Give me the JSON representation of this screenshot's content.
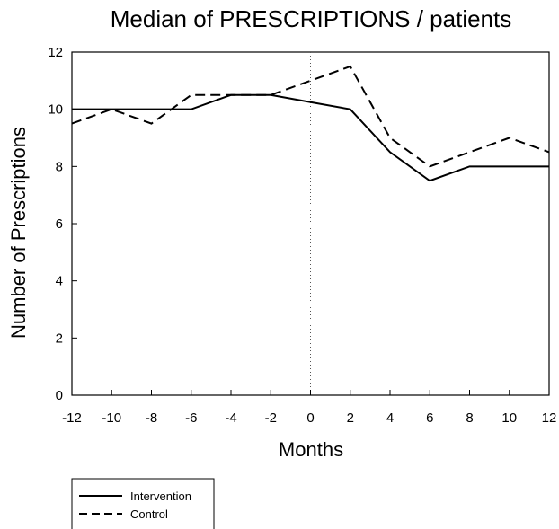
{
  "chart_data": {
    "type": "line",
    "title": "Median of PRESCRIPTIONS / patients",
    "xlabel": "Months",
    "ylabel": "Number of Prescriptions",
    "x": [
      -12,
      -10,
      -8,
      -6,
      -4,
      -2,
      0,
      2,
      4,
      6,
      8,
      10,
      12
    ],
    "xlim": [
      -12,
      12
    ],
    "ylim": [
      0,
      12
    ],
    "xticks": [
      "-12",
      "-10",
      "-8",
      "-6",
      "-4",
      "-2",
      "0",
      "2",
      "4",
      "6",
      "8",
      "10",
      "12"
    ],
    "yticks": [
      "0",
      "2",
      "4",
      "6",
      "8",
      "10",
      "12"
    ],
    "grid": false,
    "reference_line_x": 0,
    "legend_position": "bottom-left",
    "series": [
      {
        "name": "Intervention",
        "style": "solid",
        "values": [
          10,
          10,
          10,
          10,
          10.5,
          10.5,
          10.25,
          10,
          8.5,
          7.5,
          8,
          8,
          8
        ]
      },
      {
        "name": "Control",
        "style": "dashed",
        "values": [
          9.5,
          10,
          9.5,
          10.5,
          10.5,
          10.5,
          11,
          11.5,
          9,
          8,
          8.5,
          9,
          8.5
        ]
      }
    ]
  }
}
